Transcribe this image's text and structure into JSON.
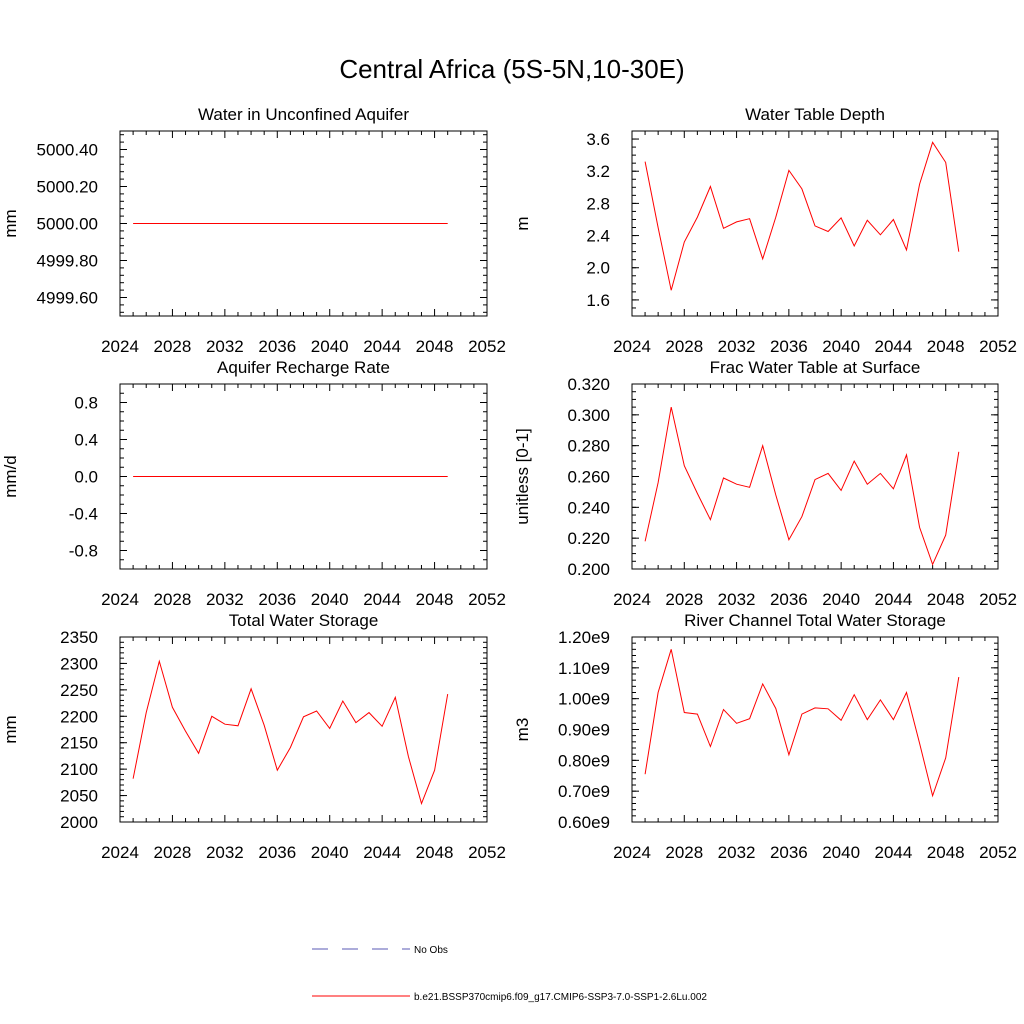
{
  "title": "Central Africa (5S-5N,10-30E)",
  "chart_data": [
    {
      "type": "line",
      "title": "Water in Unconfined Aquifer",
      "ylabel": "mm",
      "xlim": [
        2024,
        2052
      ],
      "xticks": [
        2024,
        2028,
        2032,
        2036,
        2040,
        2044,
        2048,
        2052
      ],
      "ylim": [
        4999.5,
        5000.5
      ],
      "yticks": [
        4999.6,
        4999.8,
        5000.0,
        5000.2,
        5000.4
      ],
      "ytick_labels": [
        "4999.60",
        "4999.80",
        "5000.00",
        "5000.20",
        "5000.40"
      ],
      "ymajor_step": 0.2,
      "yminor_step": 0.04,
      "x": [
        2025,
        2026,
        2027,
        2028,
        2029,
        2030,
        2031,
        2032,
        2033,
        2034,
        2035,
        2036,
        2037,
        2038,
        2039,
        2040,
        2041,
        2042,
        2043,
        2044,
        2045,
        2046,
        2047,
        2048,
        2049
      ],
      "series": [
        {
          "color": "#ff0000",
          "values": [
            5000,
            5000,
            5000,
            5000,
            5000,
            5000,
            5000,
            5000,
            5000,
            5000,
            5000,
            5000,
            5000,
            5000,
            5000,
            5000,
            5000,
            5000,
            5000,
            5000,
            5000,
            5000,
            5000,
            5000,
            5000
          ]
        }
      ]
    },
    {
      "type": "line",
      "title": "Water Table Depth",
      "ylabel": "m",
      "xlim": [
        2024,
        2052
      ],
      "xticks": [
        2024,
        2028,
        2032,
        2036,
        2040,
        2044,
        2048,
        2052
      ],
      "ylim": [
        1.4,
        3.7
      ],
      "yticks": [
        1.6,
        2.0,
        2.4,
        2.8,
        3.2,
        3.6
      ],
      "ytick_labels": [
        "1.6",
        "2.0",
        "2.4",
        "2.8",
        "3.2",
        "3.6"
      ],
      "ymajor_step": 0.4,
      "yminor_step": 0.1,
      "x": [
        2025,
        2026,
        2027,
        2028,
        2029,
        2030,
        2031,
        2032,
        2033,
        2034,
        2035,
        2036,
        2037,
        2038,
        2039,
        2040,
        2041,
        2042,
        2043,
        2044,
        2045,
        2046,
        2047,
        2048,
        2049
      ],
      "series": [
        {
          "color": "#ff0000",
          "values": [
            3.32,
            2.5,
            1.72,
            2.32,
            2.63,
            3.01,
            2.49,
            2.57,
            2.61,
            2.11,
            2.63,
            3.21,
            2.98,
            2.52,
            2.45,
            2.62,
            2.27,
            2.59,
            2.41,
            2.6,
            2.22,
            3.04,
            3.56,
            3.31,
            2.2
          ]
        }
      ]
    },
    {
      "type": "line",
      "title": "Aquifer Recharge Rate",
      "ylabel": "mm/d",
      "xlim": [
        2024,
        2052
      ],
      "xticks": [
        2024,
        2028,
        2032,
        2036,
        2040,
        2044,
        2048,
        2052
      ],
      "ylim": [
        -1.0,
        1.0
      ],
      "yticks": [
        -0.8,
        -0.4,
        0.0,
        0.4,
        0.8
      ],
      "ytick_labels": [
        "-0.8",
        "-0.4",
        "0.0",
        "0.4",
        "0.8"
      ],
      "ymajor_step": 0.4,
      "yminor_step": 0.1,
      "x": [
        2025,
        2026,
        2027,
        2028,
        2029,
        2030,
        2031,
        2032,
        2033,
        2034,
        2035,
        2036,
        2037,
        2038,
        2039,
        2040,
        2041,
        2042,
        2043,
        2044,
        2045,
        2046,
        2047,
        2048,
        2049
      ],
      "series": [
        {
          "color": "#ff0000",
          "values": [
            0,
            0,
            0,
            0,
            0,
            0,
            0,
            0,
            0,
            0,
            0,
            0,
            0,
            0,
            0,
            0,
            0,
            0,
            0,
            0,
            0,
            0,
            0,
            0,
            0
          ]
        }
      ]
    },
    {
      "type": "line",
      "title": "Frac Water Table at Surface",
      "ylabel": "unitless [0-1]",
      "xlim": [
        2024,
        2052
      ],
      "xticks": [
        2024,
        2028,
        2032,
        2036,
        2040,
        2044,
        2048,
        2052
      ],
      "ylim": [
        0.2,
        0.32
      ],
      "yticks": [
        0.2,
        0.22,
        0.24,
        0.26,
        0.28,
        0.3,
        0.32
      ],
      "ytick_labels": [
        "0.200",
        "0.220",
        "0.240",
        "0.260",
        "0.280",
        "0.300",
        "0.320"
      ],
      "ymajor_step": 0.02,
      "yminor_step": 0.005,
      "x": [
        2025,
        2026,
        2027,
        2028,
        2029,
        2030,
        2031,
        2032,
        2033,
        2034,
        2035,
        2036,
        2037,
        2038,
        2039,
        2040,
        2041,
        2042,
        2043,
        2044,
        2045,
        2046,
        2047,
        2048,
        2049
      ],
      "series": [
        {
          "color": "#ff0000",
          "values": [
            0.218,
            0.256,
            0.305,
            0.267,
            0.249,
            0.232,
            0.259,
            0.255,
            0.253,
            0.28,
            0.248,
            0.219,
            0.234,
            0.258,
            0.262,
            0.251,
            0.27,
            0.255,
            0.262,
            0.252,
            0.274,
            0.227,
            0.203,
            0.222,
            0.276
          ]
        }
      ]
    },
    {
      "type": "line",
      "title": "Total Water Storage",
      "ylabel": "mm",
      "xlim": [
        2024,
        2052
      ],
      "xticks": [
        2024,
        2028,
        2032,
        2036,
        2040,
        2044,
        2048,
        2052
      ],
      "ylim": [
        2000,
        2350
      ],
      "yticks": [
        2000,
        2050,
        2100,
        2150,
        2200,
        2250,
        2300,
        2350
      ],
      "ytick_labels": [
        "2000",
        "2050",
        "2100",
        "2150",
        "2200",
        "2250",
        "2300",
        "2350"
      ],
      "ymajor_step": 50,
      "yminor_step": 10,
      "x": [
        2025,
        2026,
        2027,
        2028,
        2029,
        2030,
        2031,
        2032,
        2033,
        2034,
        2035,
        2036,
        2037,
        2038,
        2039,
        2040,
        2041,
        2042,
        2043,
        2044,
        2045,
        2046,
        2047,
        2048,
        2049
      ],
      "series": [
        {
          "color": "#ff0000",
          "values": [
            2082,
            2207,
            2304,
            2217,
            2172,
            2130,
            2200,
            2185,
            2182,
            2252,
            2183,
            2098,
            2141,
            2199,
            2210,
            2177,
            2229,
            2188,
            2207,
            2181,
            2236,
            2124,
            2035,
            2098,
            2242
          ]
        }
      ]
    },
    {
      "type": "line",
      "title": "River Channel Total Water Storage",
      "ylabel": "m3",
      "xlim": [
        2024,
        2052
      ],
      "xticks": [
        2024,
        2028,
        2032,
        2036,
        2040,
        2044,
        2048,
        2052
      ],
      "ylim": [
        0.6,
        1.2
      ],
      "yticks": [
        0.6,
        0.7,
        0.8,
        0.9,
        1.0,
        1.1,
        1.2
      ],
      "ytick_labels": [
        "0.60e9",
        "0.70e9",
        "0.80e9",
        "0.90e9",
        "1.00e9",
        "1.10e9",
        "1.20e9"
      ],
      "ymajor_step": 0.1,
      "yminor_step": 0.02,
      "x": [
        2025,
        2026,
        2027,
        2028,
        2029,
        2030,
        2031,
        2032,
        2033,
        2034,
        2035,
        2036,
        2037,
        2038,
        2039,
        2040,
        2041,
        2042,
        2043,
        2044,
        2045,
        2046,
        2047,
        2048,
        2049
      ],
      "series": [
        {
          "color": "#ff0000",
          "values": [
            0.755,
            1.02,
            1.16,
            0.955,
            0.95,
            0.845,
            0.965,
            0.92,
            0.935,
            1.048,
            0.968,
            0.818,
            0.95,
            0.97,
            0.967,
            0.93,
            1.013,
            0.932,
            0.996,
            0.932,
            1.02,
            0.855,
            0.685,
            0.808,
            1.07
          ]
        }
      ]
    }
  ],
  "legend": {
    "entries": [
      {
        "label": "No Obs",
        "color": "#5a5ab4",
        "style": "dashed"
      },
      {
        "label": "b.e21.BSSP370cmip6.f09_g17.CMIP6-SSP3-7.0-SSP1-2.6Lu.002",
        "color": "#ff0000",
        "style": "solid"
      }
    ]
  }
}
